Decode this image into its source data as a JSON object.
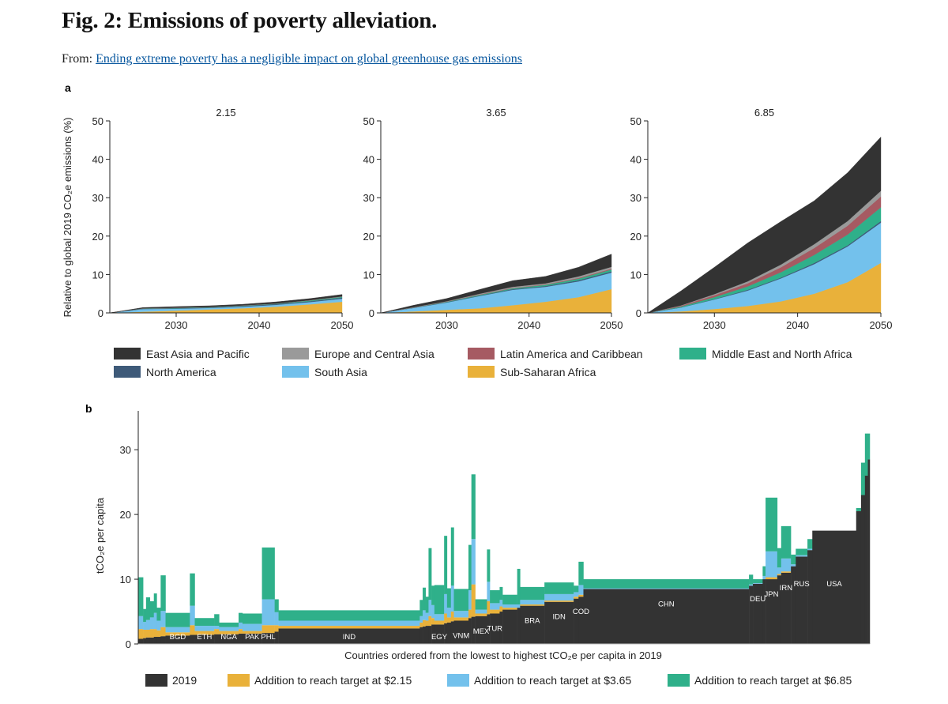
{
  "header": {
    "title": "Fig. 2: Emissions of poverty alleviation.",
    "from_prefix": "From:",
    "from_link": "Ending extreme poverty has a negligible impact on global greenhouse gas emissions"
  },
  "colors": {
    "East Asia and Pacific": "#333333",
    "North America": "#3e5a79",
    "Europe and Central Asia": "#9a9a9a",
    "South Asia": "#73c1ec",
    "Latin America and Caribbean": "#a65a62",
    "Sub-Saharan Africa": "#e9b13a",
    "Middle East and North Africa": "#2fb08a",
    "2019": "#333333",
    "Addition to reach target at $2.15": "#e9b13a",
    "Addition to reach target at $3.65": "#73c1ec",
    "Addition to reach target at $6.85": "#2fb08a"
  },
  "chart_data": [
    {
      "panel_label": "a",
      "type": "area",
      "stacked": true,
      "ylabel": "Relative to global 2019 CO₂e emissions (%)",
      "ylim": [
        0,
        50
      ],
      "yticks": [
        0,
        10,
        20,
        30,
        40,
        50
      ],
      "xlim": [
        2022,
        2050
      ],
      "xticks": [
        2030,
        2040,
        2050
      ],
      "legend_position": "bottom",
      "legend": [
        "East Asia and Pacific",
        "Europe and Central Asia",
        "Latin America and Caribbean",
        "Middle East and North Africa",
        "North America",
        "South Asia",
        "Sub-Saharan Africa"
      ],
      "stack_order": [
        "Sub-Saharan Africa",
        "South Asia",
        "North America",
        "Middle East and North Africa",
        "Latin America and Caribbean",
        "Europe and Central Asia",
        "East Asia and Pacific"
      ],
      "x": [
        2022,
        2026,
        2030,
        2034,
        2038,
        2042,
        2046,
        2050
      ],
      "panels": [
        {
          "title": "2.15",
          "series": [
            {
              "name": "Sub-Saharan Africa",
              "values": [
                0,
                0.3,
                0.6,
                0.9,
                1.2,
                1.6,
                2.2,
                2.9
              ]
            },
            {
              "name": "South Asia",
              "values": [
                0,
                0.7,
                0.5,
                0.4,
                0.4,
                0.5,
                0.6,
                0.8
              ]
            },
            {
              "name": "North America",
              "values": [
                0,
                0.1,
                0.1,
                0.1,
                0.2,
                0.2,
                0.2,
                0.3
              ]
            },
            {
              "name": "Middle East and North Africa",
              "values": [
                0,
                0.05,
                0.1,
                0.1,
                0.1,
                0.1,
                0.2,
                0.2
              ]
            },
            {
              "name": "Latin America and Caribbean",
              "values": [
                0,
                0.0,
                0.0,
                0.0,
                0.0,
                0.0,
                0.0,
                0.0
              ]
            },
            {
              "name": "Europe and Central Asia",
              "values": [
                0,
                0.05,
                0.05,
                0.05,
                0.05,
                0.05,
                0.1,
                0.1
              ]
            },
            {
              "name": "East Asia and Pacific",
              "values": [
                0,
                0.2,
                0.3,
                0.3,
                0.3,
                0.4,
                0.4,
                0.5
              ]
            }
          ]
        },
        {
          "title": "3.65",
          "series": [
            {
              "name": "Sub-Saharan Africa",
              "values": [
                0,
                0.4,
                0.8,
                1.2,
                2.0,
                2.9,
                4.1,
                6.2
              ]
            },
            {
              "name": "South Asia",
              "values": [
                0,
                0.9,
                1.9,
                3.2,
                4.0,
                3.9,
                4.1,
                4.3
              ]
            },
            {
              "name": "North America",
              "values": [
                0,
                0.05,
                0.1,
                0.1,
                0.2,
                0.2,
                0.3,
                0.3
              ]
            },
            {
              "name": "Middle East and North Africa",
              "values": [
                0,
                0.05,
                0.1,
                0.2,
                0.2,
                0.3,
                0.4,
                0.5
              ]
            },
            {
              "name": "Latin America and Caribbean",
              "values": [
                0,
                0.0,
                0.05,
                0.1,
                0.1,
                0.1,
                0.2,
                0.2
              ]
            },
            {
              "name": "Europe and Central Asia",
              "values": [
                0,
                0.1,
                0.1,
                0.2,
                0.3,
                0.3,
                0.4,
                0.5
              ]
            },
            {
              "name": "East Asia and Pacific",
              "values": [
                0,
                0.5,
                0.7,
                1.1,
                1.6,
                1.8,
                2.4,
                3.3
              ]
            }
          ]
        },
        {
          "title": "6.85",
          "series": [
            {
              "name": "Sub-Saharan Africa",
              "values": [
                0,
                0.4,
                1.0,
                1.8,
                3.0,
                5.0,
                8.0,
                13.0
              ]
            },
            {
              "name": "South Asia",
              "values": [
                0,
                1.0,
                2.5,
                4.0,
                6.0,
                7.7,
                9.3,
                10.5
              ]
            },
            {
              "name": "North America",
              "values": [
                0,
                0.05,
                0.1,
                0.2,
                0.2,
                0.3,
                0.3,
                0.4
              ]
            },
            {
              "name": "Middle East and North Africa",
              "values": [
                0,
                0.2,
                0.5,
                0.9,
                1.4,
                2.1,
                2.8,
                3.6
              ]
            },
            {
              "name": "Latin America and Caribbean",
              "values": [
                0,
                0.2,
                0.5,
                0.8,
                1.3,
                1.8,
                2.3,
                2.8
              ]
            },
            {
              "name": "Europe and Central Asia",
              "values": [
                0,
                0.1,
                0.3,
                0.5,
                0.7,
                1.0,
                1.2,
                1.5
              ]
            },
            {
              "name": "East Asia and Pacific",
              "values": [
                0,
                3.8,
                7.0,
                10.0,
                11.2,
                11.3,
                12.6,
                14.0
              ]
            }
          ]
        }
      ]
    },
    {
      "panel_label": "b",
      "type": "bar",
      "stacked": true,
      "xlabel": "Countries ordered from the lowest to highest tCO₂e per capita in 2019",
      "ylabel": "tCO₂e per capita",
      "ylim": [
        0,
        36
      ],
      "yticks": [
        0,
        10,
        20,
        30
      ],
      "legend_position": "bottom",
      "legend": [
        "2019",
        "Addition to reach target at $2.15",
        "Addition to reach target at $3.65",
        "Addition to reach target at $6.85"
      ],
      "series_order": [
        "2019",
        "Addition to reach target at $2.15",
        "Addition to reach target at $3.65",
        "Addition to reach target at $6.85"
      ],
      "bars": [
        {
          "label": "",
          "w": 0.5,
          "v": [
            0.8,
            1.5,
            2.0,
            6.0
          ]
        },
        {
          "label": "",
          "w": 0.3,
          "v": [
            0.9,
            1.3,
            1.2,
            2.0
          ]
        },
        {
          "label": "",
          "w": 0.4,
          "v": [
            1.0,
            1.2,
            1.5,
            3.5
          ]
        },
        {
          "label": "",
          "w": 0.4,
          "v": [
            1.0,
            1.3,
            1.8,
            2.5
          ]
        },
        {
          "label": "",
          "w": 0.3,
          "v": [
            1.1,
            1.2,
            2.5,
            3.0
          ]
        },
        {
          "label": "",
          "w": 0.4,
          "v": [
            1.1,
            1.0,
            1.5,
            2.0
          ]
        },
        {
          "label": "",
          "w": 0.5,
          "v": [
            1.2,
            1.4,
            2.5,
            5.5
          ]
        },
        {
          "label": "BGD",
          "w": 2.5,
          "v": [
            1.3,
            0.5,
            0.8,
            2.2
          ]
        },
        {
          "label": "",
          "w": 0.5,
          "v": [
            1.4,
            1.5,
            3.0,
            5.0
          ]
        },
        {
          "label": "ETH",
          "w": 2.0,
          "v": [
            1.4,
            0.6,
            0.8,
            1.2
          ]
        },
        {
          "label": "",
          "w": 0.5,
          "v": [
            1.5,
            0.8,
            0.5,
            1.8
          ]
        },
        {
          "label": "NGA",
          "w": 2.0,
          "v": [
            1.5,
            0.5,
            0.6,
            0.7
          ]
        },
        {
          "label": "",
          "w": 0.4,
          "v": [
            1.6,
            0.7,
            1.0,
            1.5
          ]
        },
        {
          "label": "PAK",
          "w": 2.0,
          "v": [
            1.6,
            0.4,
            1.1,
            1.6
          ]
        },
        {
          "label": "PHL",
          "w": 1.3,
          "v": [
            1.7,
            1.2,
            4.0,
            8.0
          ]
        },
        {
          "label": "",
          "w": 0.4,
          "v": [
            1.9,
            1.0,
            2.0,
            2.0
          ]
        },
        {
          "label": "IND",
          "w": 14.5,
          "v": [
            2.4,
            0.4,
            0.8,
            1.6
          ]
        },
        {
          "label": "",
          "w": 0.3,
          "v": [
            2.6,
            0.7,
            1.0,
            2.5
          ]
        },
        {
          "label": "",
          "w": 0.3,
          "v": [
            2.7,
            1.0,
            1.5,
            3.5
          ]
        },
        {
          "label": "",
          "w": 0.3,
          "v": [
            2.8,
            0.8,
            1.2,
            2.5
          ]
        },
        {
          "label": "",
          "w": 0.3,
          "v": [
            2.8,
            1.5,
            2.5,
            8.0
          ]
        },
        {
          "label": "",
          "w": 0.3,
          "v": [
            3.0,
            1.0,
            2.0,
            3.0
          ]
        },
        {
          "label": "EGY",
          "w": 1.0,
          "v": [
            3.0,
            0.6,
            1.0,
            4.5
          ]
        },
        {
          "label": "",
          "w": 0.3,
          "v": [
            3.2,
            1.5,
            3.0,
            9.0
          ]
        },
        {
          "label": "",
          "w": 0.4,
          "v": [
            3.3,
            0.8,
            1.5,
            3.0
          ]
        },
        {
          "label": "",
          "w": 0.3,
          "v": [
            3.5,
            1.5,
            4.0,
            9.0
          ]
        },
        {
          "label": "VNM",
          "w": 1.5,
          "v": [
            3.6,
            0.5,
            1.0,
            3.4
          ]
        },
        {
          "label": "",
          "w": 0.3,
          "v": [
            4.0,
            1.3,
            3.0,
            7.0
          ]
        },
        {
          "label": "",
          "w": 0.4,
          "v": [
            4.2,
            5.0,
            7.0,
            10.0
          ]
        },
        {
          "label": "MEX",
          "w": 1.2,
          "v": [
            4.3,
            0.4,
            0.6,
            1.6
          ]
        },
        {
          "label": "",
          "w": 0.3,
          "v": [
            4.6,
            2.0,
            3.0,
            5.0
          ]
        },
        {
          "label": "TUR",
          "w": 1.0,
          "v": [
            4.7,
            0.6,
            1.0,
            2.0
          ]
        },
        {
          "label": "",
          "w": 0.3,
          "v": [
            5.0,
            0.8,
            1.0,
            2.0
          ]
        },
        {
          "label": "",
          "w": 1.5,
          "v": [
            5.3,
            0.3,
            0.5,
            1.5
          ]
        },
        {
          "label": "",
          "w": 0.3,
          "v": [
            5.6,
            0.0,
            0.5,
            5.5
          ]
        },
        {
          "label": "BRA",
          "w": 2.5,
          "v": [
            5.9,
            0.2,
            0.7,
            2.0
          ]
        },
        {
          "label": "IDN",
          "w": 3.0,
          "v": [
            6.5,
            0.2,
            1.0,
            1.8
          ]
        },
        {
          "label": "",
          "w": 0.5,
          "v": [
            7.0,
            0.3,
            0.7,
            1.0
          ]
        },
        {
          "label": "COD",
          "w": 0.5,
          "v": [
            7.3,
            0.3,
            1.5,
            3.6
          ]
        },
        {
          "label": "CHN",
          "w": 17.0,
          "v": [
            8.5,
            0.0,
            0.1,
            1.4
          ]
        },
        {
          "label": "",
          "w": 0.4,
          "v": [
            9.0,
            0.0,
            0.2,
            1.5
          ]
        },
        {
          "label": "DEU",
          "w": 1.0,
          "v": [
            9.3,
            0.0,
            0.1,
            0.6
          ]
        },
        {
          "label": "",
          "w": 0.3,
          "v": [
            10.0,
            0.0,
            0.5,
            1.5
          ]
        },
        {
          "label": "JPN",
          "w": 1.2,
          "v": [
            10.0,
            0.3,
            4.0,
            8.3
          ]
        },
        {
          "label": "",
          "w": 0.4,
          "v": [
            10.6,
            0.2,
            1.0,
            3.0
          ]
        },
        {
          "label": "IRN",
          "w": 1.0,
          "v": [
            11.0,
            0.2,
            2.0,
            5.0
          ]
        },
        {
          "label": "",
          "w": 0.5,
          "v": [
            12.0,
            0.0,
            0.3,
            1.5
          ]
        },
        {
          "label": "RUS",
          "w": 1.2,
          "v": [
            13.5,
            0.0,
            0.2,
            1.0
          ]
        },
        {
          "label": "",
          "w": 0.5,
          "v": [
            14.5,
            0.0,
            0.2,
            1.5
          ]
        },
        {
          "label": "USA",
          "w": 4.5,
          "v": [
            17.5,
            0.0,
            0.0,
            0.0
          ]
        },
        {
          "label": "",
          "w": 0.5,
          "v": [
            20.5,
            0.0,
            0.0,
            0.5
          ]
        },
        {
          "label": "",
          "w": 0.4,
          "v": [
            23.0,
            0.0,
            0.0,
            5.0
          ]
        },
        {
          "label": "",
          "w": 0.3,
          "v": [
            26.0,
            0.0,
            0.0,
            6.5
          ]
        },
        {
          "label": "",
          "w": 0.2,
          "v": [
            28.5,
            0.0,
            0.0,
            4.0
          ]
        }
      ]
    }
  ]
}
